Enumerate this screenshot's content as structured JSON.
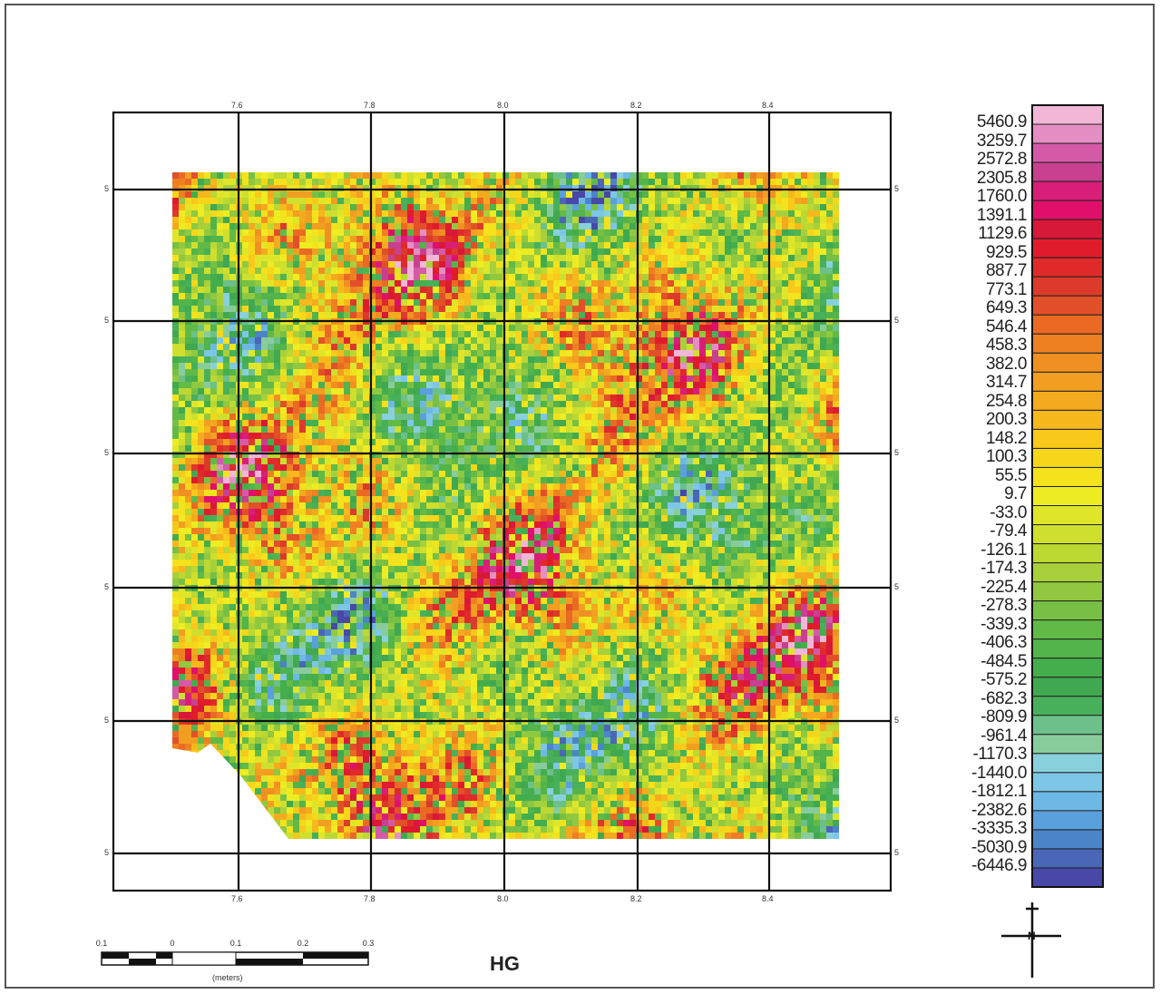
{
  "map": {
    "title": "HG",
    "legend": {
      "labels": [
        "5460.9",
        "3259.7",
        "2572.8",
        "2305.8",
        "1760.0",
        "1391.1",
        "1129.6",
        "929.5",
        "887.7",
        "773.1",
        "649.3",
        "546.4",
        "458.3",
        "382.0",
        "314.7",
        "254.8",
        "200.3",
        "148.2",
        "100.3",
        "55.5",
        "9.7",
        "-33.0",
        "-79.4",
        "-126.1",
        "-174.3",
        "-225.4",
        "-278.3",
        "-339.3",
        "-406.3",
        "-484.5",
        "-575.2",
        "-682.3",
        "-809.9",
        "-961.4",
        "-1170.3",
        "-1440.0",
        "-1812.1",
        "-2382.6",
        "-3335.3",
        "-5030.9",
        "-6446.9"
      ],
      "colors": [
        "#f2b6d6",
        "#e58ec4",
        "#d45aa8",
        "#c8408f",
        "#d91e78",
        "#e0106a",
        "#d81838",
        "#e01c2c",
        "#e02a2a",
        "#dc3a2a",
        "#e2502a",
        "#ea6a24",
        "#ee8022",
        "#f09022",
        "#f29e20",
        "#f4aa1e",
        "#f6b81c",
        "#f8c81a",
        "#f6d61a",
        "#f4e21c",
        "#eeec22",
        "#dfe62a",
        "#cfdf2e",
        "#bcd832",
        "#a8d03a",
        "#90c840",
        "#78c044",
        "#62ba46",
        "#52b44a",
        "#44ae4c",
        "#40a850",
        "#48b05a",
        "#6cc08a",
        "#88cc9c",
        "#88d0dc",
        "#7ec6e6",
        "#6eb8e6",
        "#5aa0dc",
        "#4c84c8",
        "#4a66b6",
        "#4848a8"
      ]
    },
    "grid": {
      "top_labels": [
        "7.6",
        "7.8",
        "8.0",
        "8.2",
        "8.4"
      ],
      "bottom_labels": [
        "7.6",
        "7.8",
        "8.0",
        "8.2",
        "8.4"
      ],
      "left_labels": [
        "5",
        "5",
        "5",
        "5",
        "5",
        "5"
      ],
      "right_labels": [
        "5",
        "5",
        "5",
        "5",
        "5",
        "5"
      ]
    },
    "scale_bar": {
      "ticks": [
        "0.1",
        "0",
        "0.1",
        "0.2",
        "0.3"
      ],
      "unit": "(meters)"
    },
    "north_arrow": {
      "label": "N"
    }
  }
}
